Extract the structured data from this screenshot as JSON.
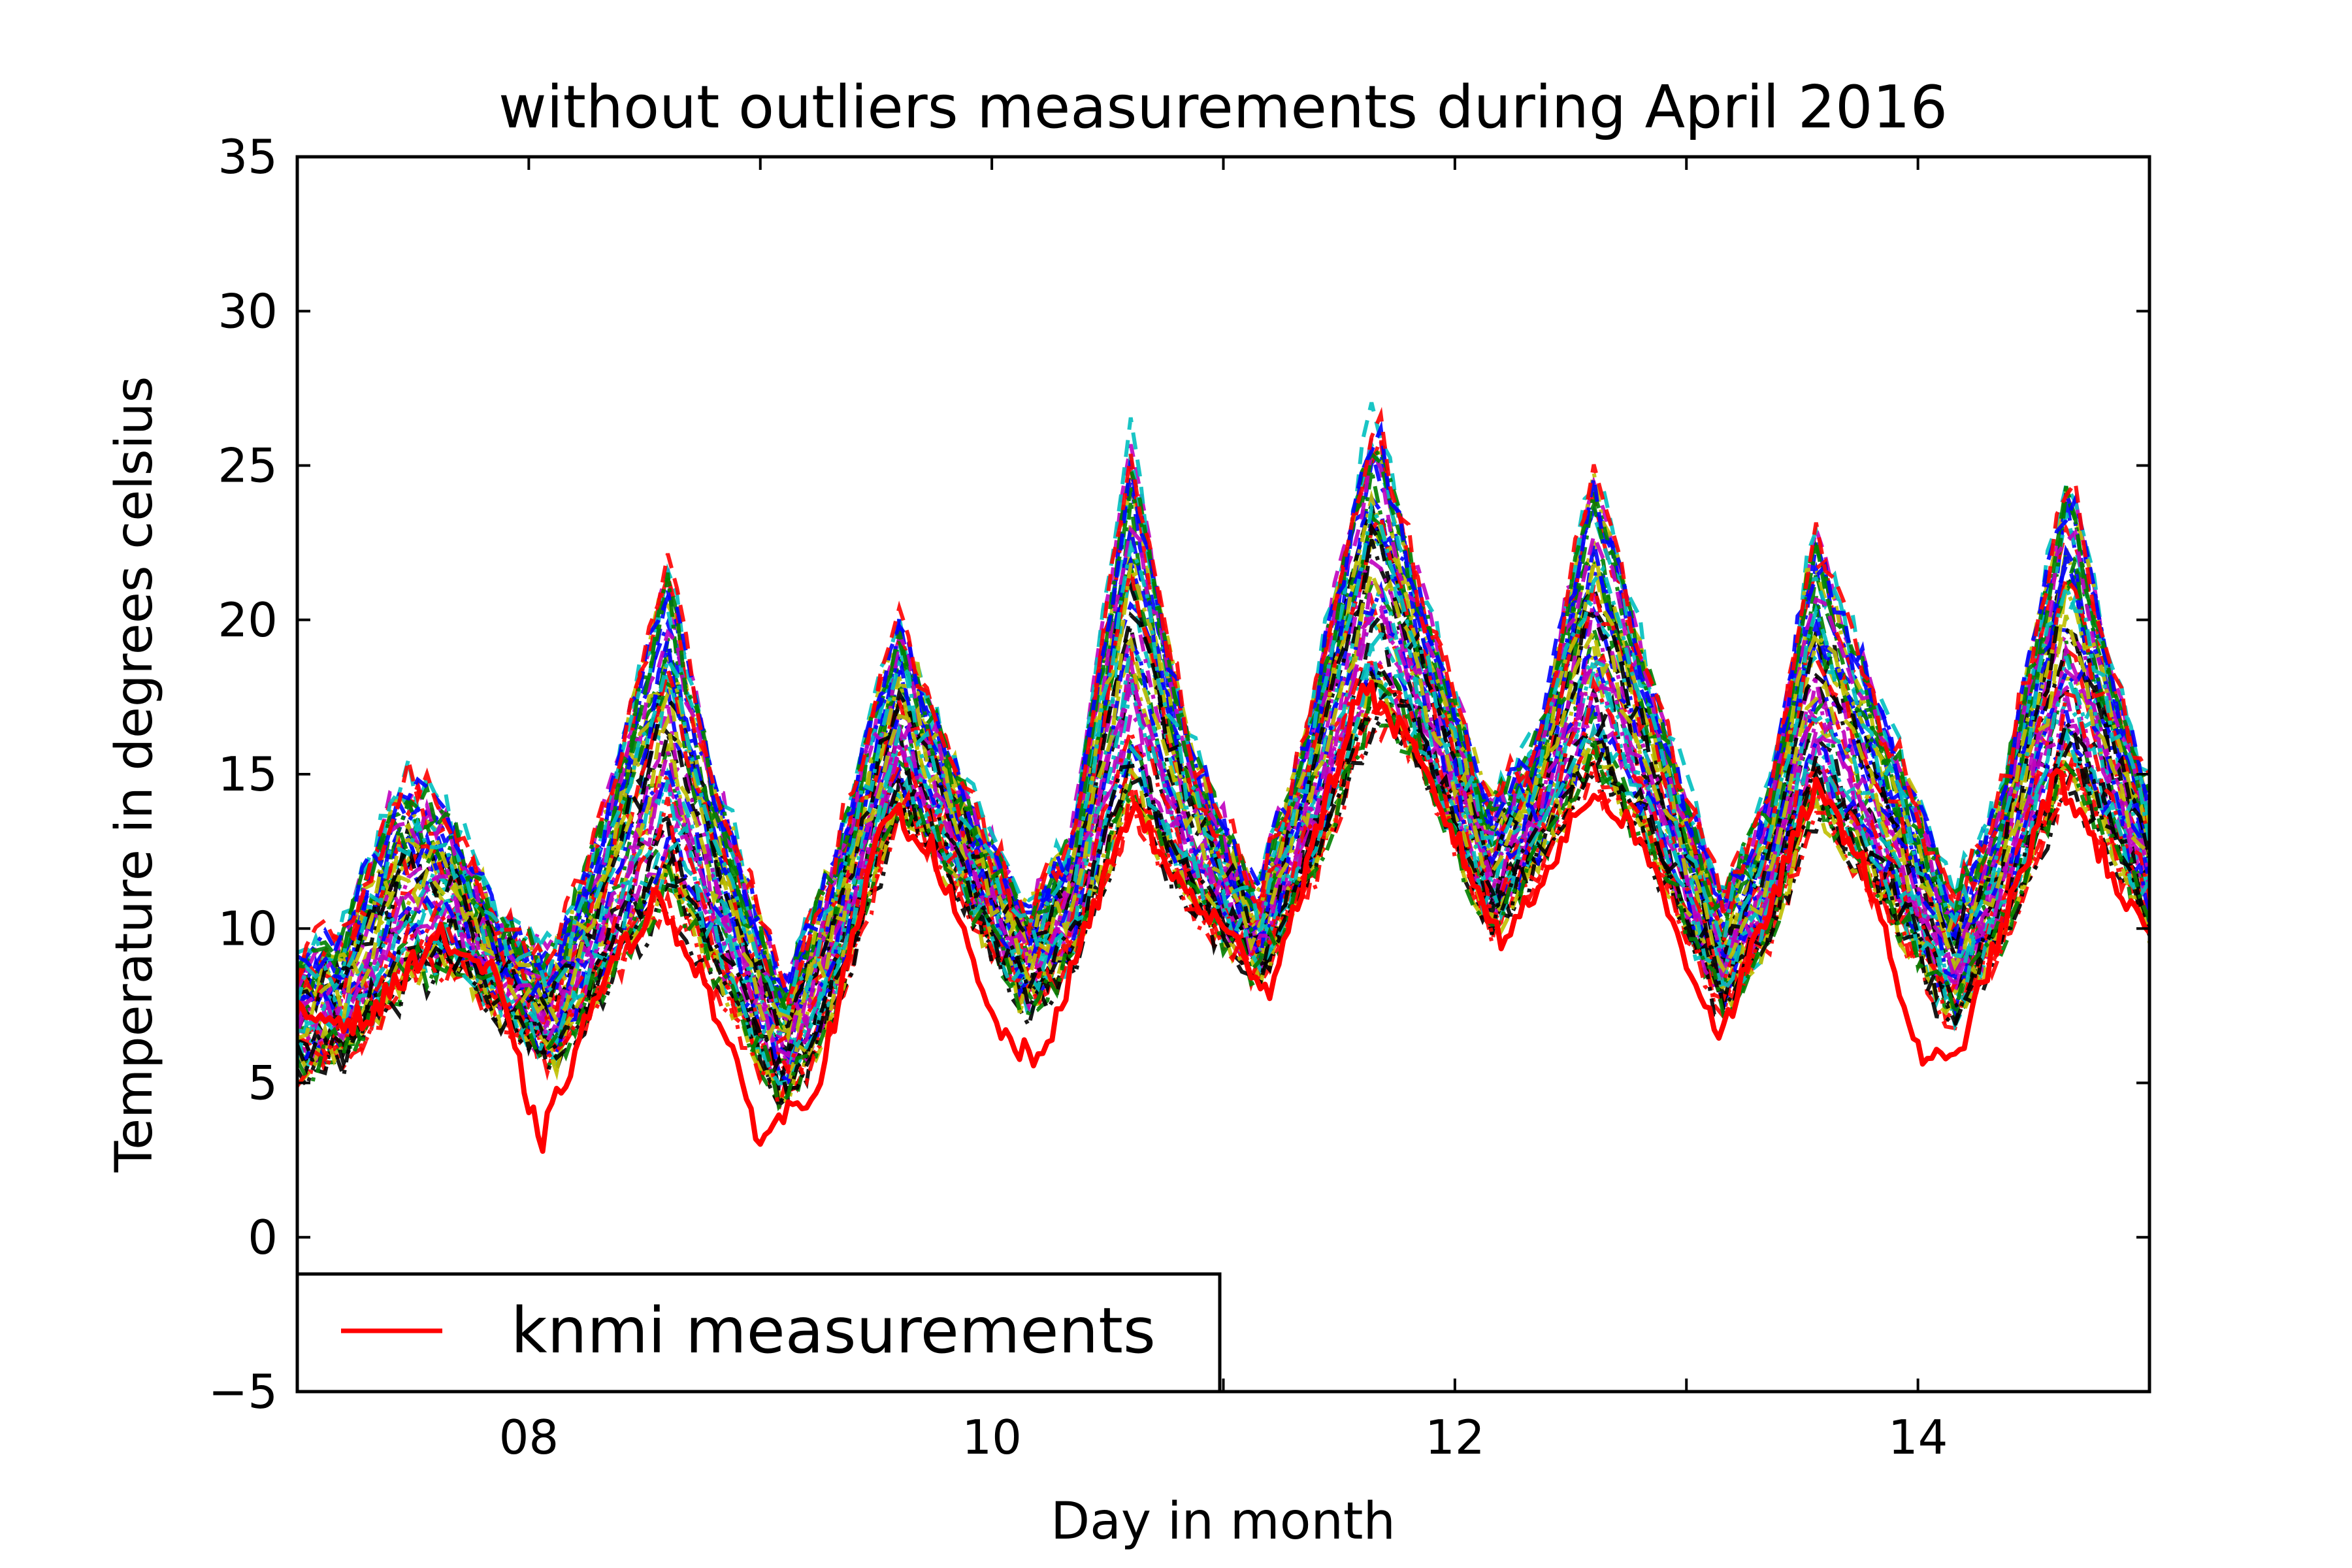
{
  "chart_data": {
    "type": "line",
    "title": "without outliers measurements during April 2016",
    "xlabel": "Day in month",
    "ylabel": "Temperature in degrees celsius",
    "xlim": [
      7,
      15
    ],
    "ylim": [
      -5,
      35
    ],
    "x_ticks": [
      {
        "value": 8,
        "label": "08"
      },
      {
        "value": 10,
        "label": "10"
      },
      {
        "value": 12,
        "label": "12"
      },
      {
        "value": 14,
        "label": "14"
      }
    ],
    "y_ticks": [
      {
        "value": -5,
        "label": "−5"
      },
      {
        "value": 0,
        "label": "0"
      },
      {
        "value": 5,
        "label": "5"
      },
      {
        "value": 10,
        "label": "10"
      },
      {
        "value": 15,
        "label": "15"
      },
      {
        "value": 20,
        "label": "20"
      },
      {
        "value": 25,
        "label": "25"
      },
      {
        "value": 30,
        "label": "30"
      },
      {
        "value": 35,
        "label": "35"
      }
    ],
    "legend": {
      "placement": "lower-left",
      "entries": [
        {
          "label": "knmi measurements",
          "color": "#ff0000"
        }
      ]
    },
    "grid": false,
    "highlighted_series": {
      "name": "knmi measurements",
      "color": "#ff0000",
      "style": "solid",
      "x": [
        7.0,
        7.3,
        7.6,
        7.85,
        8.05,
        8.3,
        8.55,
        8.75,
        9.0,
        9.25,
        9.55,
        9.75,
        10.0,
        10.2,
        10.6,
        10.8,
        11.0,
        11.2,
        11.6,
        11.8,
        12.0,
        12.2,
        12.6,
        12.8,
        13.0,
        13.15,
        13.55,
        13.75,
        14.0,
        14.15,
        14.6,
        14.75,
        15.0
      ],
      "y": [
        7.2,
        7.0,
        9.8,
        8.5,
        3.0,
        8.0,
        11.0,
        8.5,
        3.2,
        5.0,
        14.0,
        12.5,
        7.0,
        5.5,
        14.0,
        11.5,
        10.0,
        8.0,
        18.0,
        16.0,
        13.0,
        9.5,
        14.5,
        13.0,
        9.0,
        6.5,
        14.5,
        12.5,
        6.0,
        5.5,
        15.0,
        13.0,
        9.5
      ]
    },
    "station_series": {
      "count": 60,
      "styles": [
        "dashed",
        "dash-dot"
      ],
      "colors": [
        "#0000ff",
        "#008000",
        "#ff0000",
        "#00bfbf",
        "#bf00bf",
        "#bfbf00",
        "#000000"
      ],
      "x": [
        7.0,
        7.2,
        7.45,
        7.65,
        7.85,
        8.1,
        8.3,
        8.6,
        8.8,
        9.1,
        9.3,
        9.6,
        9.85,
        10.15,
        10.35,
        10.6,
        10.85,
        11.15,
        11.4,
        11.65,
        11.85,
        12.15,
        12.35,
        12.6,
        12.85,
        13.15,
        13.35,
        13.55,
        13.85,
        14.15,
        14.35,
        14.65,
        14.85,
        15.0
      ],
      "low": [
        5.5,
        6.0,
        8.0,
        9.0,
        7.5,
        5.5,
        8.0,
        11.0,
        8.5,
        4.5,
        7.0,
        14.0,
        11.5,
        7.5,
        9.0,
        14.0,
        11.0,
        8.5,
        12.0,
        17.0,
        15.5,
        10.0,
        12.0,
        15.0,
        12.5,
        7.5,
        9.5,
        14.0,
        11.0,
        7.0,
        9.5,
        15.0,
        12.5,
        10.0
      ],
      "high": [
        9.0,
        10.0,
        15.0,
        14.0,
        10.5,
        9.0,
        13.0,
        22.0,
        15.0,
        8.0,
        12.0,
        20.0,
        15.0,
        10.5,
        13.0,
        26.0,
        16.0,
        11.0,
        18.0,
        27.0,
        21.0,
        14.0,
        16.0,
        25.0,
        18.0,
        11.0,
        14.0,
        23.0,
        17.0,
        11.0,
        14.0,
        25.0,
        18.0,
        14.5
      ]
    }
  }
}
